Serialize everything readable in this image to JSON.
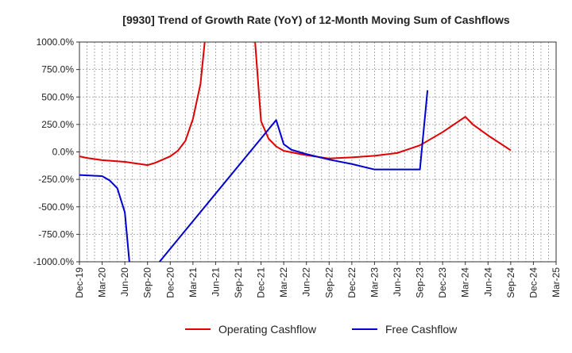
{
  "chart_data": {
    "type": "line",
    "title": "[9930]  Trend of Growth Rate (YoY) of 12-Month Moving Sum of Cashflows",
    "x_ticks": [
      "Dec-19",
      "Mar-20",
      "Jun-20",
      "Sep-20",
      "Dec-20",
      "Mar-21",
      "Jun-21",
      "Sep-21",
      "Dec-21",
      "Mar-22",
      "Jun-22",
      "Sep-22",
      "Dec-22",
      "Mar-23",
      "Jun-23",
      "Sep-23",
      "Dec-23",
      "Mar-24",
      "Jun-24",
      "Sep-24",
      "Dec-24",
      "Mar-25"
    ],
    "y_ticks": [
      1000,
      750,
      500,
      250,
      0,
      -250,
      -500,
      -750,
      -1000
    ],
    "y_tick_labels": [
      "1000.0%",
      "750.0%",
      "500.0%",
      "250.0%",
      "0.0%",
      "-250.0%",
      "-500.0%",
      "-750.0%",
      "-1000.0%"
    ],
    "ylim": [
      -1000,
      1000
    ],
    "grid": true,
    "legend_position": "bottom",
    "series": [
      {
        "name": "Operating Cashflow",
        "color": "#e00000",
        "points": [
          [
            "Dec-19",
            -40
          ],
          [
            "Jan-20",
            -55
          ],
          [
            "Feb-20",
            -65
          ],
          [
            "Mar-20",
            -75
          ],
          [
            "Jun-20",
            -90
          ],
          [
            "Sep-20",
            -120
          ],
          [
            "Oct-20",
            -100
          ],
          [
            "Nov-20",
            -70
          ],
          [
            "Dec-20",
            -40
          ],
          [
            "Jan-21",
            10
          ],
          [
            "Feb-21",
            100
          ],
          [
            "Mar-21",
            300
          ],
          [
            "Apr-21",
            620
          ],
          [
            "May-21",
            1300
          ],
          [
            "Nov-21",
            1200
          ],
          [
            "Dec-21",
            280
          ],
          [
            "Jan-22",
            120
          ],
          [
            "Feb-22",
            50
          ],
          [
            "Mar-22",
            10
          ],
          [
            "Jun-22",
            -30
          ],
          [
            "Sep-22",
            -60
          ],
          [
            "Dec-22",
            -50
          ],
          [
            "Mar-23",
            -35
          ],
          [
            "Jun-23",
            -10
          ],
          [
            "Sep-23",
            60
          ],
          [
            "Dec-23",
            180
          ],
          [
            "Mar-24",
            320
          ],
          [
            "Apr-24",
            250
          ],
          [
            "Jun-24",
            150
          ],
          [
            "Sep-24",
            15
          ]
        ]
      },
      {
        "name": "Free Cashflow",
        "color": "#0000d0",
        "points": [
          [
            "Dec-19",
            -210
          ],
          [
            "Mar-20",
            -220
          ],
          [
            "Apr-20",
            -260
          ],
          [
            "May-20",
            -330
          ],
          [
            "Jun-20",
            -550
          ],
          [
            "Jul-20",
            -1300
          ],
          [
            "Feb-22",
            290
          ],
          [
            "Mar-22",
            70
          ],
          [
            "Apr-22",
            20
          ],
          [
            "Jun-22",
            -20
          ],
          [
            "Sep-22",
            -70
          ],
          [
            "Dec-22",
            -110
          ],
          [
            "Mar-23",
            -160
          ],
          [
            "Jun-23",
            -160
          ],
          [
            "Sep-23",
            -160
          ],
          [
            "Oct-23",
            560
          ]
        ]
      }
    ]
  }
}
